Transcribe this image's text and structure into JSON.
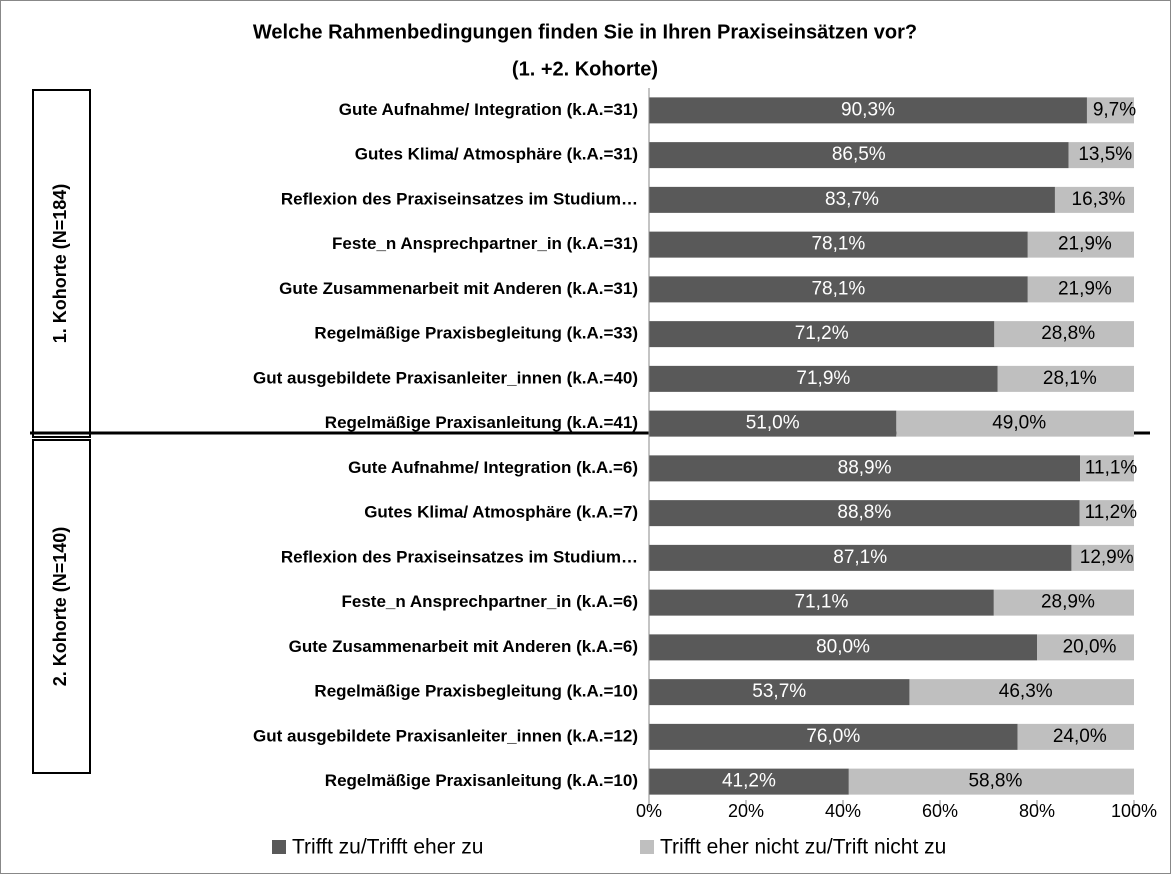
{
  "chart_data": {
    "type": "stacked_bar_horizontal",
    "title": "Welche Rahmenbedingungen finden Sie in Ihren Praxiseinsätzen vor?",
    "subtitle": "(1. +2. Kohorte)",
    "groups": [
      "1. Kohorte (N=184)",
      "2. Kohorte (N=140)"
    ],
    "categories": [
      "Gute Aufnahme/ Integration (k.A.=31)",
      "Gutes Klima/ Atmosphäre (k.A.=31)",
      "Reflexion des Praxiseinsatzes im Studium…",
      "Feste_n Ansprechpartner_in (k.A.=31)",
      "Gute Zusammenarbeit mit Anderen (k.A.=31)",
      "Regelmäßige  Praxisbegleitung (k.A.=33)",
      "Gut ausgebildete Praxisanleiter_innen (k.A.=40)",
      "Regelmäßige Praxisanleitung (k.A.=41)",
      "Gute Aufnahme/ Integration (k.A.=6)",
      "Gutes Klima/ Atmosphäre (k.A.=7)",
      "Reflexion des Praxiseinsatzes im Studium…",
      "Feste_n Ansprechpartner_in (k.A.=6)",
      "Gute Zusammenarbeit mit Anderen (k.A.=6)",
      "Regelmäßige  Praxisbegleitung (k.A.=10)",
      "Gut ausgebildete Praxisanleiter_innen (k.A.=12)",
      "Regelmäßige Praxisanleitung (k.A.=10)"
    ],
    "series": [
      {
        "name": "Trifft zu/Trifft eher zu",
        "color": "#595959",
        "values": [
          90.3,
          86.5,
          83.7,
          78.1,
          78.1,
          71.2,
          71.9,
          51.0,
          88.9,
          88.8,
          87.1,
          71.1,
          80.0,
          53.7,
          76.0,
          41.2
        ],
        "value_labels": [
          "90,3%",
          "86,5%",
          "83,7%",
          "78,1%",
          "78,1%",
          "71,2%",
          "71,9%",
          "51,0%",
          "88,9%",
          "88,8%",
          "87,1%",
          "71,1%",
          "80,0%",
          "53,7%",
          "76,0%",
          "41,2%"
        ]
      },
      {
        "name": "Trifft eher nicht zu/Trift nicht zu",
        "color": "#bfbfbf",
        "values": [
          9.7,
          13.5,
          16.3,
          21.9,
          21.9,
          28.8,
          28.1,
          49.0,
          11.1,
          11.2,
          12.9,
          28.9,
          20.0,
          46.3,
          24.0,
          58.8
        ],
        "value_labels": [
          "9,7%",
          "13,5%",
          "16,3%",
          "21,9%",
          "21,9%",
          "28,8%",
          "28,1%",
          "49,0%",
          "11,1%",
          "11,2%",
          "12,9%",
          "28,9%",
          "20,0%",
          "46,3%",
          "24,0%",
          "58,8%"
        ]
      }
    ],
    "xlim": [
      0,
      100
    ],
    "xticks": [
      {
        "value": 0,
        "label": "0%"
      },
      {
        "value": 20,
        "label": "20%"
      },
      {
        "value": 40,
        "label": "40%"
      },
      {
        "value": 60,
        "label": "60%"
      },
      {
        "value": 80,
        "label": "80%"
      },
      {
        "value": 100,
        "label": "100%"
      }
    ],
    "legend": "bottom"
  }
}
